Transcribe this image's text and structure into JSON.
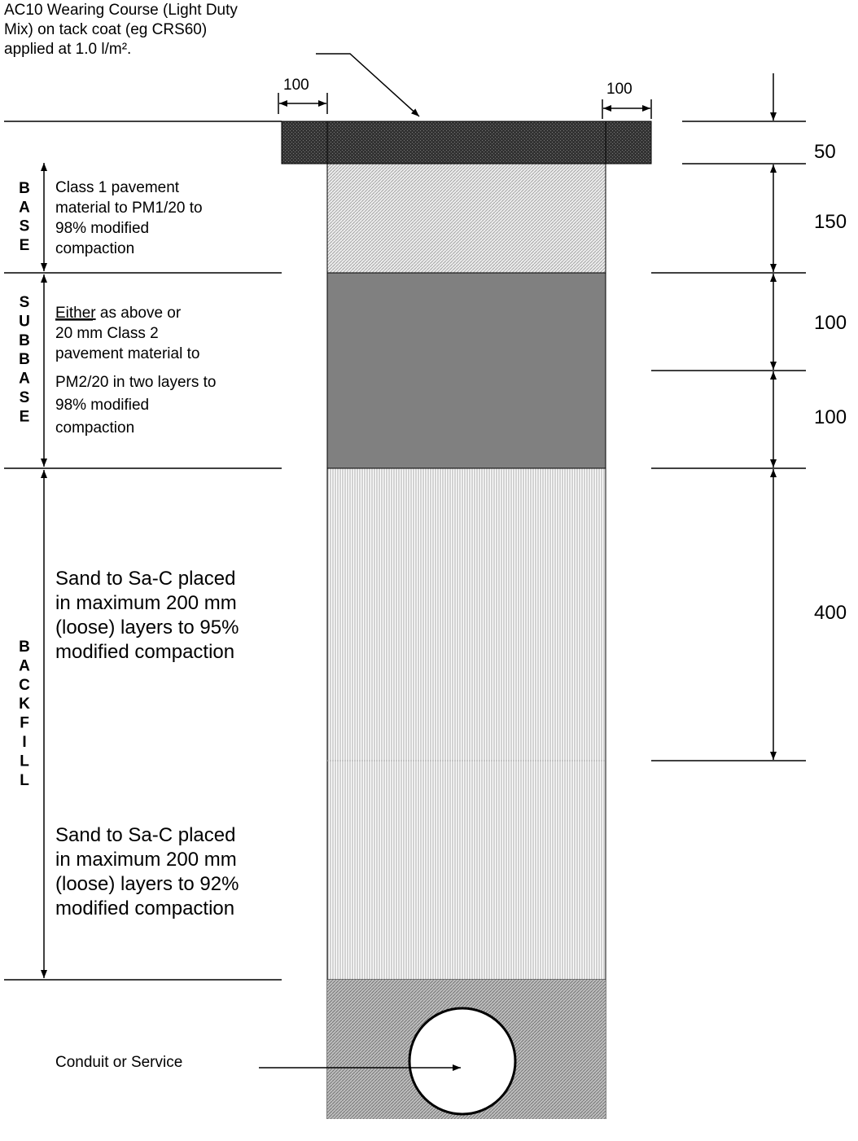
{
  "surface_note": {
    "lines": [
      "AC10 Wearing Course (Light Duty",
      "Mix) on tack coat (eg CRS60)",
      "applied at 1.0 l/m²."
    ]
  },
  "dims": {
    "left_offset": "100",
    "right_offset": "100",
    "wearing": "50",
    "base": "150",
    "subbase_upper": "100",
    "subbase_lower": "100",
    "backfill_upper": "400"
  },
  "base": {
    "vertical_label": "BASE",
    "lines": [
      "Class 1 pavement",
      "material to PM1/20 to",
      "98% modified",
      "compaction"
    ]
  },
  "subbase": {
    "vertical_label": "SUBBASE",
    "first_word": "Either",
    "first_line_rest": " as above or",
    "lines": [
      "20 mm Class 2",
      "pavement material to",
      "PM2/20 in two layers to",
      "98% modified",
      "compaction"
    ]
  },
  "backfill": {
    "vertical_label": "BACKFILL",
    "upper_lines": [
      "Sand to Sa-C placed",
      "in maximum 200 mm",
      "(loose) layers to 95%",
      "modified compaction"
    ],
    "lower_lines": [
      "Sand to Sa-C placed",
      "in maximum 200 mm",
      "(loose) layers to 92%",
      "modified compaction"
    ]
  },
  "conduit": {
    "label": "Conduit or Service"
  },
  "colors": {
    "wearing_fill": "#3a3a3a",
    "base_fill": "#d6d6d6",
    "subbase_fill": "#808080",
    "backfill_fill": "#e3e3e3",
    "bedding_fill": "#a9a9a9"
  }
}
